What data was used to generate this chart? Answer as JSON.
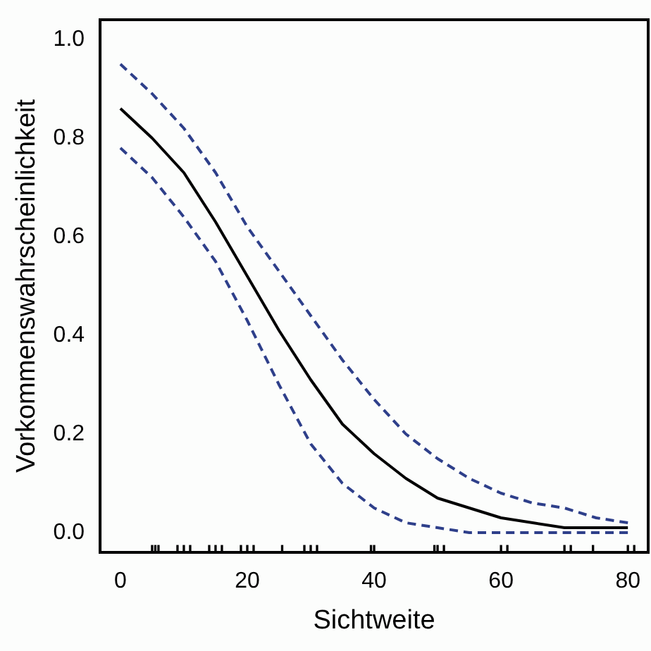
{
  "chart_data": {
    "type": "line",
    "xlabel": "Sichtweite",
    "ylabel": "Vorkommenswahrscheinlichkeit",
    "xlim": [
      -3.2,
      83.2
    ],
    "xticks": [
      0,
      20,
      40,
      60,
      80
    ],
    "ylim": [
      -0.04,
      1.04
    ],
    "yticks": [
      {
        "value": 0,
        "label": "0.0"
      },
      0.2,
      0.4,
      0.6,
      0.8,
      {
        "value": 1,
        "label": "1.0"
      }
    ],
    "grid": false,
    "legend": false,
    "marker": "none",
    "series": [
      {
        "color": "#000000",
        "line_style": "solid",
        "x": [
          0,
          5,
          10,
          15,
          20,
          25,
          30,
          35,
          40,
          45,
          50,
          55,
          60,
          65,
          70,
          75,
          80
        ],
        "values": [
          0.86,
          0.8,
          0.73,
          0.63,
          0.52,
          0.41,
          0.31,
          0.22,
          0.16,
          0.11,
          0.07,
          0.05,
          0.03,
          0.02,
          0.01,
          0.01,
          0.01
        ]
      },
      {
        "color": "#2e3f8a",
        "line_style": "dashed",
        "x": [
          0,
          5,
          10,
          15,
          20,
          25,
          30,
          35,
          40,
          45,
          50,
          55,
          60,
          65,
          70,
          75,
          80
        ],
        "values": [
          0.95,
          0.89,
          0.82,
          0.73,
          0.62,
          0.53,
          0.44,
          0.35,
          0.27,
          0.2,
          0.15,
          0.11,
          0.08,
          0.06,
          0.05,
          0.03,
          0.02
        ]
      },
      {
        "color": "#2e3f8a",
        "line_style": "dashed",
        "x": [
          0,
          5,
          10,
          15,
          20,
          25,
          30,
          35,
          40,
          45,
          50,
          55,
          60,
          65,
          70,
          75,
          80
        ],
        "values": [
          0.78,
          0.72,
          0.64,
          0.55,
          0.43,
          0.3,
          0.18,
          0.1,
          0.05,
          0.02,
          0.01,
          0,
          0,
          0,
          0,
          0,
          0
        ]
      },
      {
        "type": "bar",
        "color": "#000000",
        "x": [
          5,
          5.5,
          6,
          9,
          10,
          11,
          14,
          15,
          16,
          19,
          20,
          21,
          25.5,
          29,
          30,
          31,
          39.5,
          40,
          49.5,
          50,
          51,
          60,
          61,
          70,
          71,
          74.5,
          80,
          81
        ],
        "base": [
          -0.04,
          -0.04,
          -0.04,
          -0.04,
          -0.04,
          -0.04,
          -0.04,
          -0.04,
          -0.04,
          -0.04,
          -0.04,
          -0.04,
          -0.04,
          -0.04,
          -0.04,
          -0.04,
          -0.04,
          -0.04,
          -0.04,
          -0.04,
          -0.04,
          -0.04,
          -0.04,
          -0.04,
          -0.04,
          -0.04,
          -0.04,
          -0.04
        ],
        "values": [
          0.014,
          0.014,
          0.014,
          0.014,
          0.014,
          0.014,
          0.014,
          0.014,
          0.014,
          0.014,
          0.014,
          0.014,
          0.014,
          0.014,
          0.014,
          0.014,
          0.014,
          0.014,
          0.014,
          0.014,
          0.014,
          0.014,
          0.014,
          0.014,
          0.014,
          0.014,
          0.014,
          0.014
        ]
      }
    ]
  }
}
